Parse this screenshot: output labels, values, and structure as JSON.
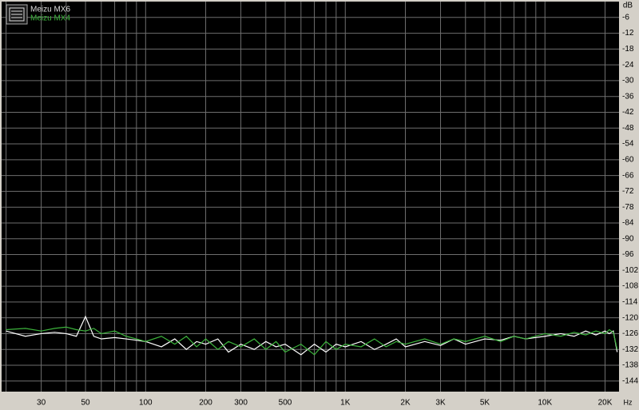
{
  "chart_data": {
    "type": "line",
    "x_unit": "Hz",
    "y_unit": "dB",
    "xscale": "log",
    "xlim": [
      19,
      23500
    ],
    "ylim": [
      -148,
      0
    ],
    "xticks": [
      30,
      50,
      100,
      200,
      300,
      500,
      {
        "value": 1000,
        "label": "1K"
      },
      {
        "value": 2000,
        "label": "2K"
      },
      {
        "value": 3000,
        "label": "3K"
      },
      {
        "value": 5000,
        "label": "5K"
      },
      {
        "value": 10000,
        "label": "10K"
      },
      {
        "value": 20000,
        "label": "20K"
      }
    ],
    "xgrid": [
      20,
      30,
      40,
      50,
      60,
      70,
      80,
      90,
      100,
      200,
      300,
      400,
      500,
      600,
      700,
      800,
      900,
      1000,
      2000,
      3000,
      4000,
      5000,
      6000,
      7000,
      8000,
      9000,
      10000,
      20000
    ],
    "yticks": [
      -6,
      -12,
      -18,
      -24,
      -30,
      -36,
      -42,
      -48,
      -54,
      -60,
      -66,
      -72,
      -78,
      -84,
      -90,
      -96,
      -102,
      -108,
      -114,
      -120,
      -126,
      -132,
      -138,
      -144
    ],
    "grid": true,
    "legend": "top-left",
    "x": [
      20,
      25,
      30,
      35,
      40,
      45,
      50,
      55,
      60,
      70,
      80,
      90,
      100,
      120,
      140,
      160,
      180,
      200,
      230,
      260,
      300,
      350,
      400,
      450,
      500,
      600,
      700,
      800,
      900,
      1000,
      1200,
      1400,
      1600,
      1800,
      2000,
      2500,
      3000,
      3500,
      4000,
      5000,
      6000,
      7000,
      8000,
      10000,
      12000,
      14000,
      16000,
      18000,
      20000,
      21000,
      22000,
      23000
    ],
    "series": [
      {
        "name": "Meizu MX6",
        "color": "#ffffff",
        "values": [
          -125,
          -127,
          -126,
          -125.5,
          -126,
          -127,
          -119.5,
          -127,
          -128,
          -127.5,
          -128,
          -128.5,
          -129,
          -131,
          -128,
          -132,
          -129,
          -130,
          -128,
          -133,
          -130,
          -132,
          -129,
          -131,
          -130,
          -134,
          -130,
          -133,
          -130,
          -131,
          -129,
          -132,
          -130,
          -128,
          -131,
          -129,
          -130.5,
          -128,
          -130,
          -128,
          -128.5,
          -127,
          -128,
          -127,
          -126,
          -127,
          -125,
          -126.5,
          -125,
          -126,
          -125,
          -133
        ]
      },
      {
        "name": "Meizu MX4",
        "color": "#3cb43c",
        "values": [
          -124.5,
          -124,
          -125,
          -124,
          -123.5,
          -124.5,
          -125,
          -124,
          -126,
          -125,
          -127,
          -128,
          -129,
          -127,
          -130,
          -127,
          -131,
          -128,
          -132,
          -129,
          -131,
          -128,
          -132,
          -129,
          -133,
          -130,
          -134,
          -129,
          -132,
          -130,
          -131,
          -128,
          -131,
          -129,
          -130,
          -128,
          -130,
          -128,
          -129,
          -127,
          -129,
          -127,
          -128,
          -126,
          -127,
          -125.5,
          -126.5,
          -125,
          -126,
          -124.5,
          -125.5,
          -132
        ]
      }
    ]
  }
}
